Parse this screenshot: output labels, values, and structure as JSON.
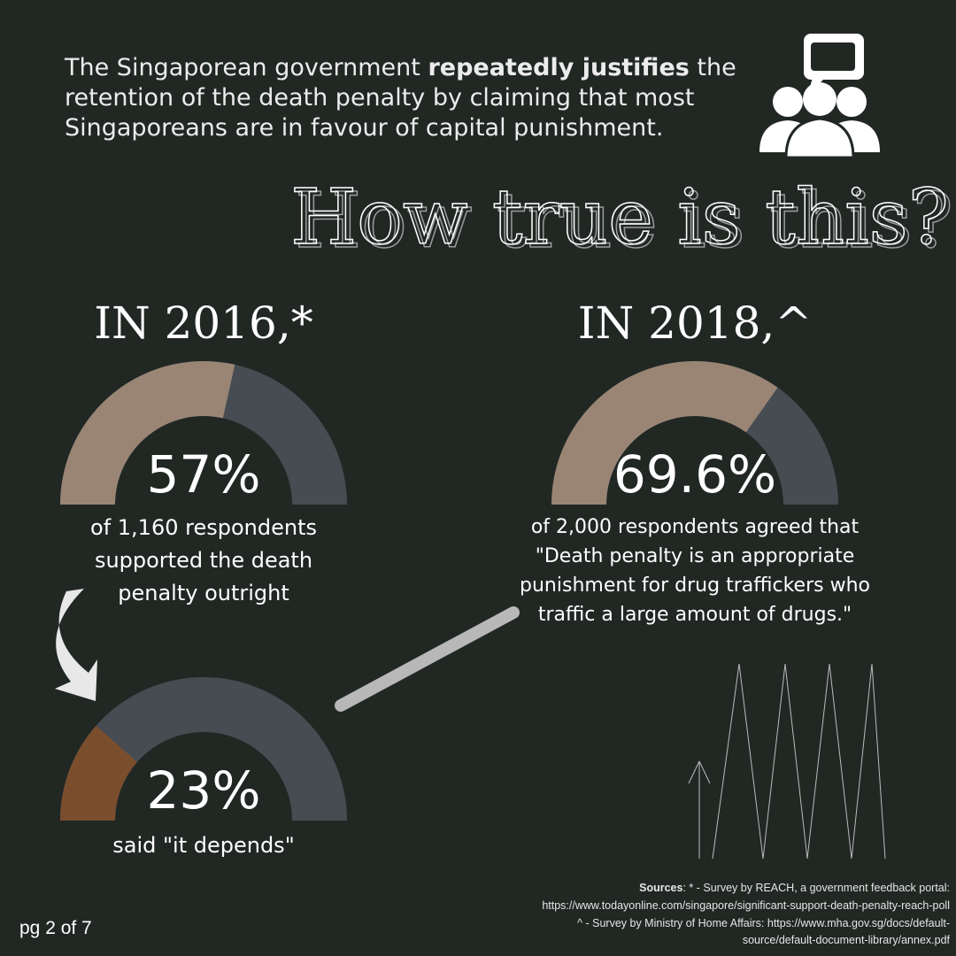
{
  "intro": {
    "line1": [
      "The Singaporean government ",
      "repeatedly justifies",
      " the"
    ],
    "line2": "retention of the death penalty by claiming that most",
    "line3": "Singaporeans are in favour of capital punishment."
  },
  "headline": "How true is this?",
  "gauges": [
    {
      "heading": "IN 2016,*",
      "value": 57,
      "value_label": "57%",
      "color": "#9a8575",
      "track_color": "#474c53",
      "caption": [
        "of 1,160 respondents",
        "supported the death",
        "penalty outright"
      ]
    },
    {
      "heading": "IN 2018,^",
      "value": 69.6,
      "value_label": "69.6%",
      "color": "#9a8575",
      "track_color": "#474c53",
      "caption": [
        "of 2,000 respondents agreed that",
        "\"Death penalty is an appropriate",
        "punishment for drug traffickers who",
        "traffic a large amount of drugs.\""
      ]
    },
    {
      "value": 23,
      "value_label": "23%",
      "color": "#7a4e2d",
      "track_color": "#474c53",
      "caption": [
        "said \"it depends\""
      ]
    }
  ],
  "sources": {
    "label": "Sources",
    "lines": [
      ": * - Survey by REACH, a government feedback portal:",
      "https://www.todayonline.com/singapore/significant-support-death-penalty-reach-poll",
      "^ - Survey by Ministry of Home Affairs: https://www.mha.gov.sg/docs/default-",
      "source/default-document-library/annex.pdf"
    ]
  },
  "page_label": "pg 2 of 7"
}
